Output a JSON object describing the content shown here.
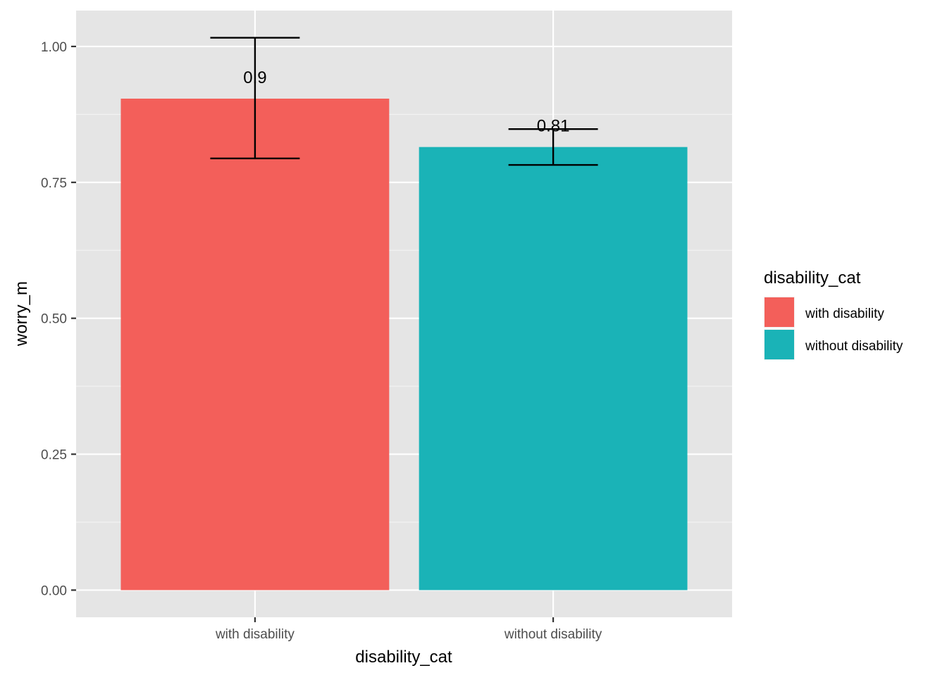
{
  "chart_data": {
    "type": "bar",
    "categories": [
      "with disability",
      "without disability"
    ],
    "values": [
      0.904,
      0.815
    ],
    "error_bars": [
      {
        "low": 0.794,
        "high": 1.016
      },
      {
        "low": 0.782,
        "high": 0.848
      }
    ],
    "data_labels": [
      "0.9",
      "0.81"
    ],
    "colors": [
      "#F35F5A",
      "#1AB3B7"
    ],
    "xlabel": "disability_cat",
    "ylabel": "worry_m",
    "ylim": [
      -0.05,
      1.066
    ],
    "yticks": [
      0.0,
      0.25,
      0.5,
      0.75,
      1.0
    ],
    "ytick_labels": [
      "0.00",
      "0.25",
      "0.50",
      "0.75",
      "1.00"
    ],
    "grid": true,
    "panel_background": "#E5E5E5",
    "legend": {
      "title": "disability_cat",
      "position": "right",
      "items": [
        "with disability",
        "without disability"
      ]
    }
  }
}
